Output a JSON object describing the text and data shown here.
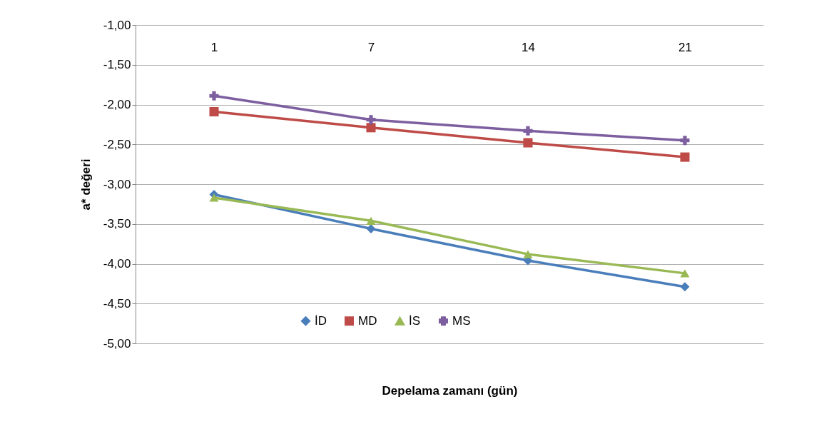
{
  "chart_data": {
    "type": "line",
    "xlabel": "Depelama zamanı (gün)",
    "ylabel": "a* değeri",
    "categories": [
      "1",
      "7",
      "14",
      "21"
    ],
    "series": [
      {
        "name": "İD",
        "color": "#4a7ebb",
        "marker": "diamond",
        "values": [
          -3.13,
          -3.56,
          -3.96,
          -4.29
        ]
      },
      {
        "name": "MD",
        "color": "#be4b48",
        "marker": "square",
        "values": [
          -2.09,
          -2.29,
          -2.48,
          -2.66
        ]
      },
      {
        "name": "İS",
        "color": "#98b954",
        "marker": "triangle",
        "values": [
          -3.17,
          -3.46,
          -3.88,
          -4.12
        ]
      },
      {
        "name": "MS",
        "color": "#7d5fa0",
        "marker": "cross",
        "values": [
          -1.89,
          -2.19,
          -2.33,
          -2.45
        ]
      }
    ],
    "ylim": [
      -5,
      -1
    ],
    "yticks": [
      {
        "value": -1,
        "label": "-1,00"
      },
      {
        "value": -1.5,
        "label": "-1,50"
      },
      {
        "value": -2,
        "label": "-2,00"
      },
      {
        "value": -2.5,
        "label": "-2,50"
      },
      {
        "value": -3,
        "label": "-3,00"
      },
      {
        "value": -3.5,
        "label": "-3,50"
      },
      {
        "value": -4,
        "label": "-4,00"
      },
      {
        "value": -4.5,
        "label": "-4,50"
      },
      {
        "value": -5,
        "label": "-5,00"
      }
    ],
    "grid": "y",
    "legend": "bottom",
    "line_style": "solid"
  }
}
